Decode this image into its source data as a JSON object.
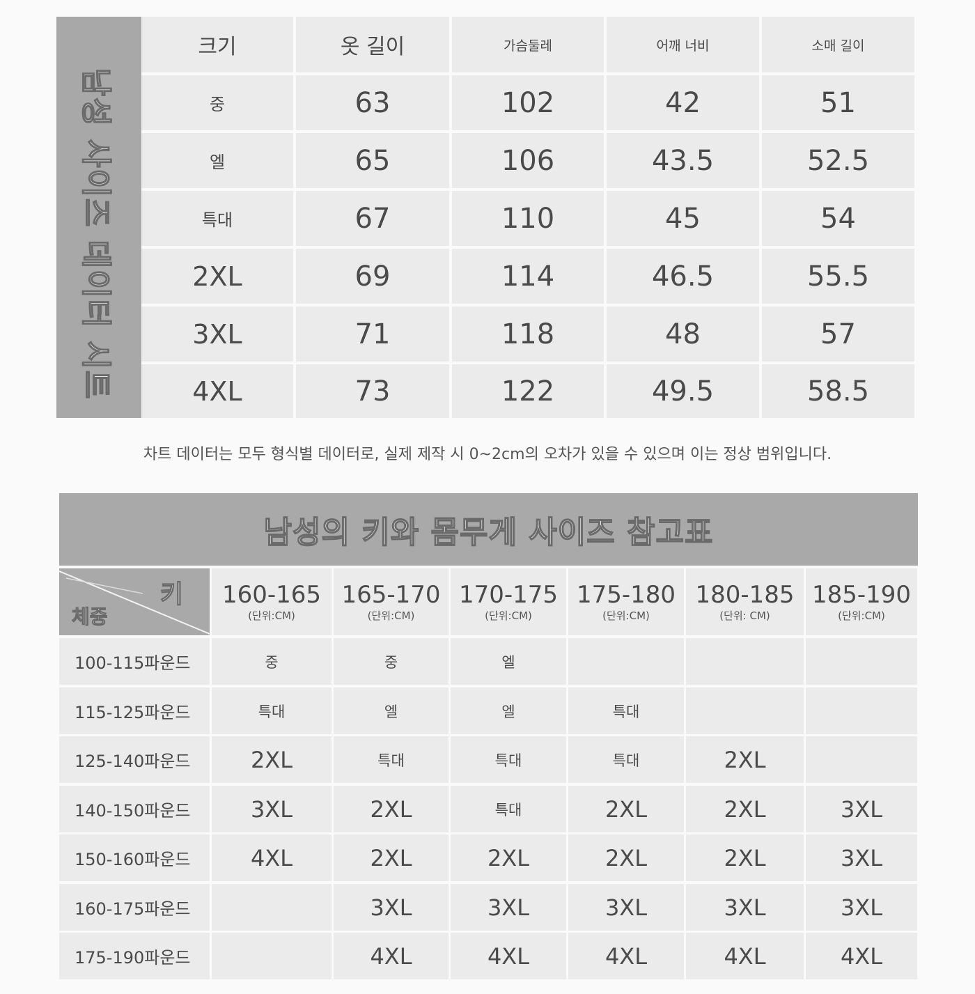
{
  "size_data_sheet": {
    "side_title": "남성 사이즈 데이터 시트",
    "headers": [
      "크기",
      "옷 길이",
      "가슴둘레",
      "어깨 너비",
      "소매 길이"
    ],
    "rows": [
      {
        "size": "중",
        "length": "63",
        "chest": "102",
        "shoulder": "42",
        "sleeve": "51"
      },
      {
        "size": "엘",
        "length": "65",
        "chest": "106",
        "shoulder": "43.5",
        "sleeve": "52.5"
      },
      {
        "size": "특대",
        "length": "67",
        "chest": "110",
        "shoulder": "45",
        "sleeve": "54"
      },
      {
        "size": "2XL",
        "length": "69",
        "chest": "114",
        "shoulder": "46.5",
        "sleeve": "55.5"
      },
      {
        "size": "3XL",
        "length": "71",
        "chest": "118",
        "shoulder": "48",
        "sleeve": "57"
      },
      {
        "size": "4XL",
        "length": "73",
        "chest": "122",
        "shoulder": "49.5",
        "sleeve": "58.5"
      }
    ]
  },
  "note": "차트 데이터는 모두 형식별 데이터로, 실제 제작 시 0~2cm의 오차가 있을 수 있으며 이는 정상 범위입니다.",
  "reference_table": {
    "title": "남성의 키와 몸무게 사이즈 참고표",
    "corner_height_label": "키",
    "corner_weight_label": "체중",
    "columns": [
      {
        "range": "160-165",
        "unit": "(단위:CM)"
      },
      {
        "range": "165-170",
        "unit": "(단위:CM)"
      },
      {
        "range": "170-175",
        "unit": "(단위:CM)"
      },
      {
        "range": "175-180",
        "unit": "(단위:CM)"
      },
      {
        "range": "180-185",
        "unit": "(단위: CM)"
      },
      {
        "range": "185-190",
        "unit": "(단위:CM)"
      }
    ],
    "rows": [
      {
        "weight": "100-115파운드",
        "sizes": [
          "중",
          "중",
          "엘",
          "",
          "",
          ""
        ]
      },
      {
        "weight": "115-125파운드",
        "sizes": [
          "특대",
          "엘",
          "엘",
          "특대",
          "",
          ""
        ]
      },
      {
        "weight": "125-140파운드",
        "sizes": [
          "2XL",
          "특대",
          "특대",
          "특대",
          "2XL",
          ""
        ]
      },
      {
        "weight": "140-150파운드",
        "sizes": [
          "3XL",
          "2XL",
          "특대",
          "2XL",
          "2XL",
          "3XL"
        ]
      },
      {
        "weight": "150-160파운드",
        "sizes": [
          "4XL",
          "2XL",
          "2XL",
          "2XL",
          "2XL",
          "3XL"
        ]
      },
      {
        "weight": "160-175파운드",
        "sizes": [
          "",
          "3XL",
          "3XL",
          "3XL",
          "3XL",
          "3XL"
        ]
      },
      {
        "weight": "175-190파운드",
        "sizes": [
          "",
          "4XL",
          "4XL",
          "4XL",
          "4XL",
          "4XL"
        ]
      }
    ]
  }
}
